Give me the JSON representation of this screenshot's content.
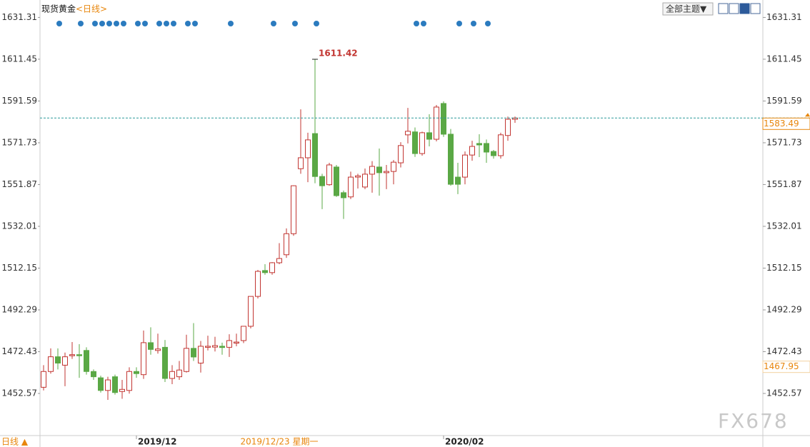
{
  "chart_data": {
    "type": "candlestick",
    "title": "现货黄金",
    "period": "<日线>",
    "theme_button": "全部主题▼",
    "footer_period": "日线 ▲",
    "watermark": "FX678",
    "crosshair": {
      "index": 33,
      "label": "2019/12/23 星期一"
    },
    "categories": [
      null,
      null,
      null,
      null,
      null,
      null,
      null,
      null,
      null,
      null,
      null,
      null,
      null,
      "2019/12",
      null,
      null,
      null,
      null,
      null,
      null,
      null,
      null,
      null,
      null,
      null,
      null,
      null,
      null,
      null,
      null,
      null,
      null,
      null,
      null,
      null,
      null,
      null,
      null,
      null,
      null,
      null,
      null,
      null,
      null,
      null,
      null,
      null,
      null,
      null,
      null,
      null,
      null,
      null,
      null,
      null,
      null,
      "2020/02",
      null,
      null,
      null,
      null,
      null,
      null,
      null,
      null,
      null,
      null
    ],
    "ohlc": [
      [
        1455.5,
        1466,
        1454,
        1463
      ],
      [
        1463,
        1474,
        1462,
        1470
      ],
      [
        1470,
        1474,
        1464,
        1467
      ],
      [
        1466,
        1472,
        1456,
        1470
      ],
      [
        1470.5,
        1477,
        1469,
        1471
      ],
      [
        1471,
        1476,
        1460,
        1470.5
      ],
      [
        1473,
        1474.5,
        1461.5,
        1463
      ],
      [
        1463,
        1464,
        1459,
        1460.5
      ],
      [
        1460,
        1461,
        1453,
        1454
      ],
      [
        1454,
        1460.5,
        1449.5,
        1459
      ],
      [
        1460.5,
        1461.5,
        1452,
        1453
      ],
      [
        1453.5,
        1459,
        1450,
        1454.5
      ],
      [
        1454,
        1465,
        1452.5,
        1463
      ],
      [
        1463,
        1465,
        1460,
        1462
      ],
      [
        1461.5,
        1482.5,
        1459.5,
        1476.7
      ],
      [
        1476.7,
        1484,
        1471,
        1473.5
      ],
      [
        1473,
        1481,
        1471.5,
        1473.7
      ],
      [
        1474.5,
        1478,
        1458,
        1459.7
      ],
      [
        1459.7,
        1466,
        1457,
        1463
      ],
      [
        1460.5,
        1468,
        1459,
        1463.7
      ],
      [
        1463,
        1480.5,
        1462.5,
        1474
      ],
      [
        1474,
        1486,
        1468,
        1469.9
      ],
      [
        1467,
        1477.5,
        1462.5,
        1475
      ],
      [
        1474.5,
        1480,
        1473,
        1475
      ],
      [
        1474.6,
        1479.5,
        1472.5,
        1475.3
      ],
      [
        1475,
        1476.7,
        1471,
        1474.4
      ],
      [
        1474.5,
        1480.7,
        1469.9,
        1477.7
      ],
      [
        1476.5,
        1481,
        1475,
        1477
      ],
      [
        1477.7,
        1484.5,
        1476.5,
        1484.5
      ],
      [
        1484.5,
        1498.7,
        1483.5,
        1498.7
      ],
      [
        1498.7,
        1511.3,
        1497.7,
        1510.6
      ],
      [
        1511,
        1514,
        1509,
        1510
      ],
      [
        1510,
        1515,
        1509,
        1514.7
      ],
      [
        1514.7,
        1524,
        1514,
        1516.7
      ],
      [
        1518.5,
        1531,
        1517,
        1528.5
      ],
      [
        1528.5,
        1551.5,
        1527.5,
        1551.3
      ],
      [
        1559.4,
        1587.6,
        1557,
        1564.6
      ],
      [
        1564.6,
        1576.5,
        1553,
        1573.1
      ],
      [
        1576.1,
        1611.42,
        1552.5,
        1555.7
      ],
      [
        1555.7,
        1557,
        1540.2,
        1551.3
      ],
      [
        1551.8,
        1562.2,
        1551.3,
        1561.2
      ],
      [
        1560.2,
        1561.2,
        1546,
        1546.6
      ],
      [
        1548,
        1549,
        1535.5,
        1545.6
      ],
      [
        1546,
        1558,
        1545,
        1555.4
      ],
      [
        1555.4,
        1557,
        1550,
        1556
      ],
      [
        1550.7,
        1559.5,
        1549.7,
        1556.8
      ],
      [
        1556.8,
        1563,
        1548,
        1560.5
      ],
      [
        1560.2,
        1569,
        1546.6,
        1557.5
      ],
      [
        1557.5,
        1561.2,
        1549.7,
        1558.1
      ],
      [
        1558.1,
        1563.5,
        1552,
        1562.5
      ],
      [
        1562.2,
        1572,
        1560,
        1570.4
      ],
      [
        1575.5,
        1588.3,
        1571.4,
        1577.2
      ],
      [
        1576.9,
        1579,
        1565,
        1566.6
      ],
      [
        1566.6,
        1577,
        1565.6,
        1576.5
      ],
      [
        1576.5,
        1585.3,
        1570,
        1573.4
      ],
      [
        1573.4,
        1589.7,
        1572.4,
        1588.7
      ],
      [
        1590.4,
        1591.4,
        1574.5,
        1575.8
      ],
      [
        1575.8,
        1578.3,
        1551.3,
        1552
      ],
      [
        1555.4,
        1562.2,
        1547.3,
        1552
      ],
      [
        1555.4,
        1567.6,
        1552,
        1565.9
      ],
      [
        1565.9,
        1572.7,
        1563.2,
        1570
      ],
      [
        1571.4,
        1575.8,
        1564.9,
        1570.7
      ],
      [
        1571.4,
        1573.3,
        1562.2,
        1567.3
      ],
      [
        1567.6,
        1568.3,
        1564.2,
        1565.6
      ],
      [
        1565.6,
        1576.5,
        1564.2,
        1575.5
      ],
      [
        1575.2,
        1584.2,
        1572.7,
        1582.9
      ],
      [
        1582.9,
        1584.2,
        1581.2,
        1583.49
      ]
    ],
    "up_color": "#c23531",
    "down_color": "#5aa845",
    "events": [
      2,
      5,
      7,
      8,
      9,
      10,
      11,
      13,
      14,
      16,
      17,
      18,
      20,
      21,
      26,
      32,
      35,
      38,
      52,
      53,
      58,
      60,
      62
    ],
    "event_color": "#2b7bbf",
    "low_marker": 1467.95,
    "ylim": [
      1432.54,
      1637.9
    ],
    "yticks": [
      1452.57,
      1472.43,
      1492.29,
      1512.15,
      1532.01,
      1551.87,
      1571.73,
      1591.59,
      1611.45,
      1631.31
    ]
  }
}
